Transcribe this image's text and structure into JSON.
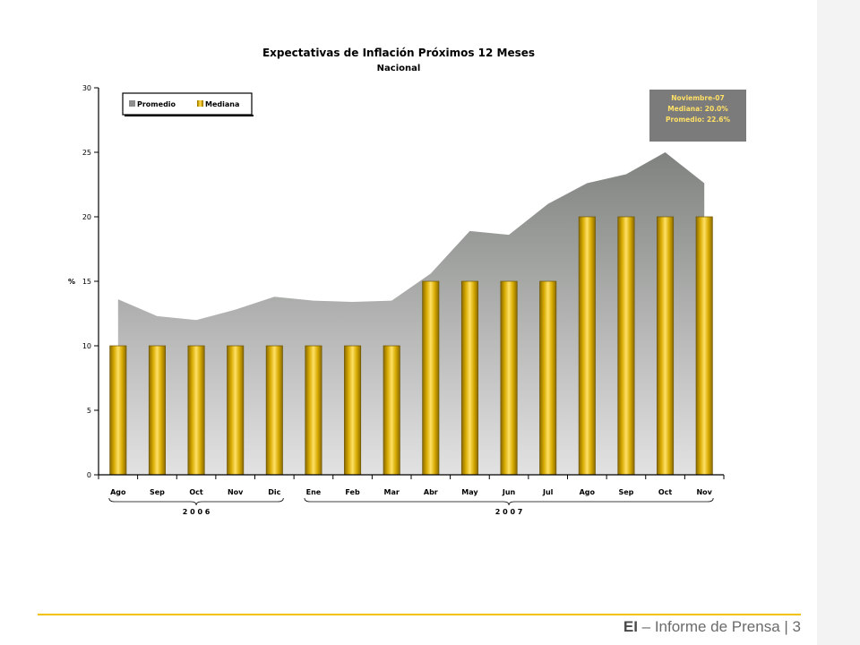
{
  "chart_data": {
    "type": "bar",
    "title": "Expectativas de Inflación Próximos 12 Meses",
    "subtitle": "Nacional",
    "ylabel": "%",
    "xlabel": "",
    "ylim": [
      0,
      30
    ],
    "yticks": [
      0,
      5,
      10,
      15,
      20,
      25,
      30
    ],
    "categories": [
      "Ago",
      "Sep",
      "Oct",
      "Nov",
      "Dic",
      "Ene",
      "Feb",
      "Mar",
      "Abr",
      "May",
      "Jun",
      "Jul",
      "Ago",
      "Sep",
      "Oct",
      "Nov"
    ],
    "year_groups": [
      {
        "label": "2 0 0 6",
        "from": 0,
        "to": 4
      },
      {
        "label": "2 0 0 7",
        "from": 5,
        "to": 15
      }
    ],
    "series": [
      {
        "name": "Promedio",
        "type": "area",
        "color": "#8e8e8e",
        "values": [
          13.6,
          12.3,
          12.0,
          12.8,
          13.8,
          13.5,
          13.4,
          13.5,
          15.6,
          18.9,
          18.6,
          21.0,
          22.6,
          23.3,
          25.0,
          22.6
        ]
      },
      {
        "name": "Mediana",
        "type": "bar",
        "color": "#d4a800",
        "values": [
          10,
          10,
          10,
          10,
          10,
          10,
          10,
          10,
          15,
          15,
          15,
          15,
          20,
          20,
          20,
          20
        ]
      }
    ],
    "legend": {
      "position": "top-left",
      "items": [
        "Promedio",
        "Mediana"
      ]
    },
    "annotation": {
      "lines": [
        "Noviembre-07",
        "Mediana: 20.0%",
        "Promedio: 22.6%"
      ],
      "position": "top-right"
    },
    "grid": false
  },
  "footer": {
    "brand": "EI",
    "text": " – Informe de Prensa | 3"
  },
  "colors": {
    "accent_line": "#f2c200",
    "bar_gold": "#d4a800",
    "area_gray": "#8e8e8e"
  }
}
